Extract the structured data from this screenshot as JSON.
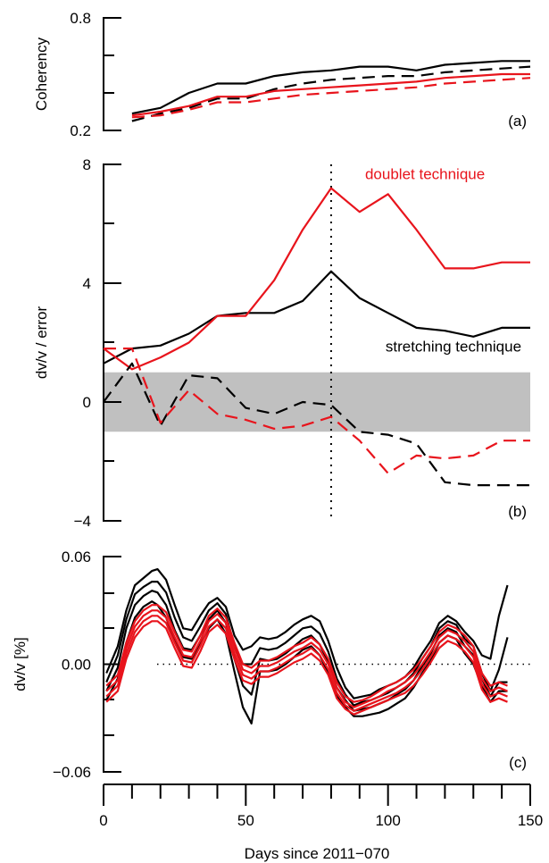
{
  "colors": {
    "black": "#000000",
    "red": "#e8141c",
    "band": "#c0c0c0"
  },
  "x_axis": {
    "label": "Days since 2011−070",
    "range": [
      0,
      150
    ],
    "ticks": [
      0,
      50,
      100,
      150
    ]
  },
  "chart_data": [
    {
      "type": "line",
      "panel": "(a)",
      "ylabel": "Coherency",
      "ylim": [
        0.2,
        0.8
      ],
      "ytick_labels": [
        "0.8",
        "0.2"
      ],
      "series": [
        {
          "color": "black",
          "dash": "solid",
          "x": [
            10,
            20,
            30,
            40,
            50,
            60,
            70,
            80,
            90,
            100,
            110,
            120,
            130,
            140,
            150
          ],
          "y": [
            0.29,
            0.32,
            0.4,
            0.45,
            0.45,
            0.49,
            0.51,
            0.52,
            0.54,
            0.54,
            0.52,
            0.55,
            0.56,
            0.57,
            0.57
          ]
        },
        {
          "color": "black",
          "dash": "dashed",
          "x": [
            10,
            20,
            30,
            40,
            50,
            60,
            70,
            80,
            90,
            100,
            110,
            120,
            130,
            140,
            150
          ],
          "y": [
            0.25,
            0.29,
            0.32,
            0.37,
            0.37,
            0.42,
            0.45,
            0.47,
            0.48,
            0.49,
            0.49,
            0.51,
            0.52,
            0.53,
            0.54
          ]
        },
        {
          "color": "red",
          "dash": "solid",
          "x": [
            10,
            20,
            30,
            40,
            50,
            60,
            70,
            80,
            90,
            100,
            110,
            120,
            130,
            140,
            150
          ],
          "y": [
            0.28,
            0.3,
            0.33,
            0.38,
            0.38,
            0.41,
            0.42,
            0.43,
            0.44,
            0.45,
            0.46,
            0.48,
            0.49,
            0.5,
            0.5
          ]
        },
        {
          "color": "red",
          "dash": "dashed",
          "x": [
            10,
            20,
            30,
            40,
            50,
            60,
            70,
            80,
            90,
            100,
            110,
            120,
            130,
            140,
            150
          ],
          "y": [
            0.27,
            0.28,
            0.31,
            0.35,
            0.35,
            0.37,
            0.39,
            0.4,
            0.41,
            0.42,
            0.43,
            0.45,
            0.46,
            0.47,
            0.48
          ]
        }
      ]
    },
    {
      "type": "line",
      "panel": "(b)",
      "ylabel": "dv/v / error",
      "ylim": [
        -4,
        8
      ],
      "yticks": [
        8,
        4,
        0,
        -4
      ],
      "ytick_labels": [
        "8",
        "4",
        "0",
        "−4"
      ],
      "band": [
        -1,
        1
      ],
      "vline_x": 80,
      "annotations": [
        {
          "text": "doublet technique",
          "color": "red",
          "x": 113,
          "y": 7.5
        },
        {
          "text": "stretching technique",
          "color": "black",
          "x": 123,
          "y": 1.7
        }
      ],
      "series": [
        {
          "color": "black",
          "dash": "solid",
          "x": [
            0,
            10,
            20,
            30,
            40,
            50,
            60,
            70,
            80,
            90,
            100,
            110,
            120,
            130,
            140,
            150
          ],
          "y": [
            1.3,
            1.8,
            1.9,
            2.3,
            2.9,
            3.0,
            3.0,
            3.4,
            4.4,
            3.5,
            3.0,
            2.5,
            2.4,
            2.2,
            2.5,
            2.5
          ]
        },
        {
          "color": "red",
          "dash": "solid",
          "x": [
            0,
            10,
            20,
            30,
            40,
            50,
            60,
            70,
            80,
            90,
            100,
            110,
            120,
            130,
            140,
            150
          ],
          "y": [
            1.8,
            1.1,
            1.5,
            2.0,
            2.9,
            2.9,
            4.1,
            5.8,
            7.2,
            6.4,
            7.0,
            5.8,
            4.5,
            4.5,
            4.7,
            4.7
          ]
        },
        {
          "color": "black",
          "dash": "dashed",
          "x": [
            0,
            10,
            20,
            30,
            40,
            50,
            60,
            70,
            80,
            90,
            100,
            110,
            120,
            130,
            140,
            150
          ],
          "y": [
            0.0,
            1.3,
            -0.8,
            0.9,
            0.8,
            -0.2,
            -0.4,
            0.0,
            -0.1,
            -1.0,
            -1.1,
            -1.4,
            -2.7,
            -2.8,
            -2.8,
            -2.8
          ]
        },
        {
          "color": "red",
          "dash": "dashed",
          "x": [
            0,
            10,
            20,
            30,
            40,
            50,
            60,
            70,
            80,
            90,
            100,
            110,
            120,
            130,
            140,
            150
          ],
          "y": [
            1.8,
            1.8,
            -0.7,
            0.4,
            -0.4,
            -0.6,
            -0.9,
            -0.8,
            -0.5,
            -1.3,
            -2.4,
            -1.8,
            -1.9,
            -1.8,
            -1.3,
            -1.3
          ]
        }
      ]
    },
    {
      "type": "line",
      "panel": "(c)",
      "ylabel": "dv/v [%]",
      "ylim": [
        -0.06,
        0.06
      ],
      "yticks": [
        0.06,
        0.0,
        -0.06
      ],
      "ytick_labels": [
        "0.06",
        "0.00",
        "−0.06"
      ],
      "zero_line": true,
      "x": [
        1,
        5,
        8,
        11,
        14,
        17,
        19,
        22,
        25,
        28,
        31,
        34,
        37,
        40,
        43,
        46,
        49,
        52,
        55,
        58,
        61,
        64,
        67,
        70,
        73,
        76,
        79,
        82,
        85,
        88,
        91,
        94,
        97,
        100,
        103,
        106,
        109,
        112,
        115,
        118,
        121,
        124,
        127,
        130,
        133,
        136,
        139,
        142
      ],
      "series": [
        {
          "color": "black",
          "dash": "solid",
          "y": [
            -0.005,
            0.01,
            0.03,
            0.044,
            0.048,
            0.052,
            0.053,
            0.047,
            0.033,
            0.02,
            0.019,
            0.027,
            0.034,
            0.037,
            0.032,
            0.016,
            0.008,
            0.01,
            0.015,
            0.014,
            0.015,
            0.018,
            0.022,
            0.025,
            0.027,
            0.024,
            0.013,
            -0.002,
            -0.013,
            -0.019,
            -0.018,
            -0.017,
            -0.014,
            -0.012,
            -0.01,
            -0.007,
            -0.002,
            0.006,
            0.013,
            0.023,
            0.027,
            0.024,
            0.018,
            0.013,
            0.005,
            0.003,
            0.027,
            0.044
          ]
        },
        {
          "color": "black",
          "dash": "solid",
          "y": [
            -0.01,
            0.005,
            0.025,
            0.039,
            0.043,
            0.046,
            0.046,
            0.04,
            0.026,
            0.015,
            0.013,
            0.021,
            0.03,
            0.034,
            0.028,
            0.01,
            0.0,
            0.0,
            0.009,
            0.008,
            0.009,
            0.012,
            0.016,
            0.02,
            0.021,
            0.017,
            0.007,
            -0.008,
            -0.017,
            -0.023,
            -0.021,
            -0.02,
            -0.018,
            -0.016,
            -0.013,
            -0.01,
            -0.005,
            0.003,
            0.01,
            0.02,
            0.024,
            0.022,
            0.014,
            0.01,
            -0.005,
            -0.015,
            -0.003,
            0.015
          ]
        },
        {
          "color": "black",
          "dash": "solid",
          "y": [
            -0.015,
            -0.002,
            0.02,
            0.033,
            0.038,
            0.041,
            0.04,
            0.033,
            0.019,
            0.009,
            0.008,
            0.016,
            0.025,
            0.03,
            0.023,
            0.003,
            -0.012,
            -0.017,
            0.003,
            0.002,
            0.003,
            0.006,
            0.01,
            0.014,
            0.016,
            0.011,
            0.001,
            -0.013,
            -0.02,
            -0.026,
            -0.025,
            -0.024,
            -0.022,
            -0.02,
            -0.017,
            -0.014,
            -0.009,
            -0.001,
            0.006,
            0.016,
            0.02,
            0.018,
            0.01,
            0.005,
            -0.008,
            -0.018,
            -0.01,
            -0.01
          ]
        },
        {
          "color": "black",
          "dash": "solid",
          "y": [
            -0.02,
            -0.008,
            0.012,
            0.026,
            0.032,
            0.035,
            0.033,
            0.026,
            0.013,
            0.004,
            0.003,
            0.011,
            0.02,
            0.025,
            0.017,
            -0.004,
            -0.024,
            -0.033,
            -0.004,
            -0.004,
            -0.003,
            0.0,
            0.004,
            0.008,
            0.01,
            0.005,
            -0.005,
            -0.018,
            -0.024,
            -0.029,
            -0.029,
            -0.028,
            -0.027,
            -0.025,
            -0.022,
            -0.019,
            -0.013,
            -0.005,
            0.002,
            0.012,
            0.016,
            0.014,
            0.006,
            0.0,
            -0.012,
            -0.021,
            -0.015,
            -0.015
          ]
        },
        {
          "color": "red",
          "dash": "solid",
          "y": [
            -0.012,
            -0.006,
            0.012,
            0.024,
            0.03,
            0.033,
            0.033,
            0.029,
            0.018,
            0.008,
            0.007,
            0.016,
            0.027,
            0.031,
            0.026,
            0.012,
            0.0,
            -0.002,
            0.002,
            0.002,
            0.004,
            0.007,
            0.01,
            0.012,
            0.015,
            0.011,
            0.003,
            -0.01,
            -0.018,
            -0.021,
            -0.02,
            -0.018,
            -0.015,
            -0.012,
            -0.01,
            -0.007,
            -0.003,
            0.003,
            0.01,
            0.018,
            0.022,
            0.02,
            0.016,
            0.01,
            -0.005,
            -0.012,
            -0.01,
            -0.012
          ]
        },
        {
          "color": "red",
          "dash": "solid",
          "y": [
            -0.015,
            -0.009,
            0.009,
            0.021,
            0.027,
            0.03,
            0.03,
            0.026,
            0.015,
            0.005,
            0.004,
            0.013,
            0.024,
            0.028,
            0.023,
            0.009,
            -0.003,
            -0.005,
            -0.001,
            -0.001,
            0.001,
            0.004,
            0.007,
            0.009,
            0.012,
            0.008,
            0.0,
            -0.013,
            -0.021,
            -0.024,
            -0.022,
            -0.02,
            -0.018,
            -0.015,
            -0.013,
            -0.01,
            -0.006,
            0.0,
            0.007,
            0.015,
            0.019,
            0.017,
            0.013,
            0.007,
            -0.008,
            -0.015,
            -0.013,
            -0.015
          ]
        },
        {
          "color": "red",
          "dash": "solid",
          "y": [
            -0.018,
            -0.012,
            0.006,
            0.018,
            0.024,
            0.027,
            0.027,
            0.023,
            0.012,
            0.002,
            0.001,
            0.01,
            0.021,
            0.025,
            0.02,
            0.006,
            -0.006,
            -0.008,
            -0.004,
            -0.004,
            -0.002,
            0.001,
            0.004,
            0.006,
            0.009,
            0.005,
            -0.003,
            -0.016,
            -0.023,
            -0.026,
            -0.024,
            -0.022,
            -0.02,
            -0.018,
            -0.016,
            -0.013,
            -0.009,
            -0.003,
            0.004,
            0.012,
            0.016,
            0.014,
            0.01,
            0.004,
            -0.011,
            -0.018,
            -0.016,
            -0.018
          ]
        },
        {
          "color": "red",
          "dash": "solid",
          "y": [
            -0.021,
            -0.015,
            0.003,
            0.015,
            0.021,
            0.024,
            0.024,
            0.02,
            0.009,
            -0.001,
            -0.002,
            0.007,
            0.018,
            0.022,
            0.017,
            0.003,
            -0.009,
            -0.011,
            -0.007,
            -0.007,
            -0.005,
            -0.002,
            0.001,
            0.003,
            0.006,
            0.002,
            -0.006,
            -0.019,
            -0.025,
            -0.028,
            -0.026,
            -0.024,
            -0.022,
            -0.02,
            -0.018,
            -0.016,
            -0.012,
            -0.006,
            0.001,
            0.009,
            0.013,
            0.011,
            0.007,
            0.001,
            -0.014,
            -0.021,
            -0.019,
            -0.021
          ]
        }
      ]
    }
  ]
}
